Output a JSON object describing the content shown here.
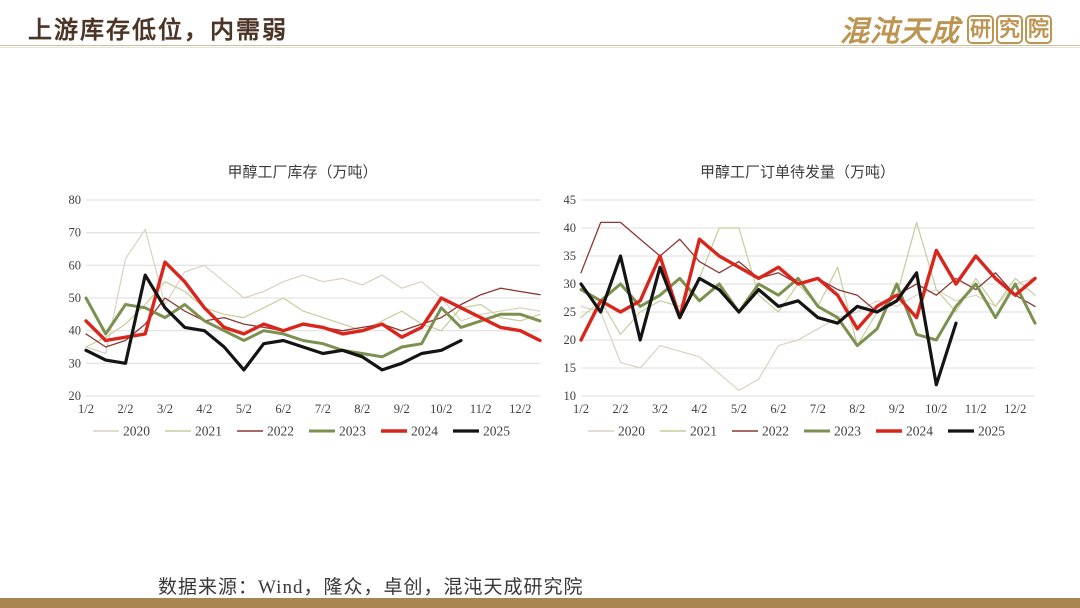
{
  "header": {
    "title": "上游库存低位，内需弱",
    "logo_main": "混沌天成",
    "logo_box_chars": [
      "研",
      "究",
      "院"
    ]
  },
  "footer": {
    "source": "数据来源：Wind，隆众，卓创，混沌天成研究院"
  },
  "colors": {
    "title_text": "#4b3526",
    "logo_gold": "#bc9552",
    "bottom_bar": "#a9854f",
    "grid": "#dcdcdc",
    "axis_text": "#404040"
  },
  "chart_data": [
    {
      "type": "line",
      "title": "甲醇工厂库存（万吨）",
      "ylim": [
        20,
        80
      ],
      "yticks": [
        20,
        30,
        40,
        50,
        60,
        70,
        80
      ],
      "x_tick_labels": [
        "1/2",
        "2/2",
        "3/2",
        "4/2",
        "5/2",
        "6/2",
        "7/2",
        "8/2",
        "9/2",
        "10/2",
        "11/2",
        "12/2"
      ],
      "points_per_month": 2,
      "grid": "horizontal",
      "legend_position": "bottom",
      "series": [
        {
          "name": "2020",
          "color": "#d9d2c1",
          "width": 1.2,
          "values": [
            35,
            33,
            62,
            71,
            48,
            58,
            60,
            55,
            50,
            52,
            55,
            57,
            55,
            56,
            54,
            57,
            53,
            55,
            50,
            43,
            45,
            46,
            47,
            46
          ]
        },
        {
          "name": "2021",
          "color": "#c6cd9b",
          "width": 1.2,
          "values": [
            35,
            38,
            42,
            48,
            55,
            52,
            47,
            45,
            44,
            47,
            50,
            46,
            44,
            42,
            40,
            43,
            46,
            42,
            40,
            47,
            48,
            44,
            43,
            45
          ]
        },
        {
          "name": "2022",
          "color": "#8c3836",
          "width": 1.3,
          "values": [
            39,
            35,
            37,
            42,
            50,
            46,
            43,
            44,
            42,
            41,
            40,
            42,
            41,
            40,
            41,
            42,
            40,
            42,
            44,
            48,
            51,
            53,
            52,
            51
          ]
        },
        {
          "name": "2023",
          "color": "#7c9150",
          "width": 3,
          "values": [
            50,
            39,
            48,
            47,
            44,
            48,
            43,
            40,
            37,
            40,
            39,
            37,
            36,
            34,
            33,
            32,
            35,
            36,
            47,
            41,
            43,
            45,
            45,
            43
          ]
        },
        {
          "name": "2024",
          "color": "#d9261c",
          "width": 3.4,
          "values": [
            43,
            37,
            38,
            39,
            61,
            55,
            47,
            41,
            39,
            42,
            40,
            42,
            41,
            39,
            40,
            42,
            38,
            41,
            50,
            47,
            44,
            41,
            40,
            37
          ]
        },
        {
          "name": "2025",
          "color": "#141414",
          "width": 3.2,
          "values": [
            34,
            31,
            30,
            57,
            47,
            41,
            40,
            35,
            28,
            36,
            37,
            35,
            33,
            34,
            32,
            28,
            30,
            33,
            34,
            37,
            null,
            null,
            null,
            null
          ]
        }
      ]
    },
    {
      "type": "line",
      "title": "甲醇工厂订单待发量（万吨）",
      "ylim": [
        10,
        45
      ],
      "yticks": [
        10,
        15,
        20,
        25,
        30,
        35,
        40,
        45
      ],
      "x_tick_labels": [
        "1/2",
        "2/2",
        "3/2",
        "4/2",
        "5/2",
        "6/2",
        "7/2",
        "8/2",
        "9/2",
        "10/2",
        "11/2",
        "12/2"
      ],
      "points_per_month": 2,
      "grid": "horizontal",
      "legend_position": "bottom",
      "series": [
        {
          "name": "2020",
          "color": "#d9d2c1",
          "width": 1.2,
          "values": [
            26,
            25,
            16,
            15,
            19,
            18,
            17,
            14,
            11,
            13,
            19,
            20,
            22,
            24,
            25,
            27,
            26,
            28,
            29,
            27,
            28,
            26,
            30,
            31
          ]
        },
        {
          "name": "2021",
          "color": "#c6cd9b",
          "width": 1.2,
          "values": [
            24,
            27,
            21,
            25,
            27,
            26,
            31,
            40,
            40,
            28,
            25,
            30,
            26,
            33,
            19,
            25,
            28,
            41,
            29,
            25,
            31,
            26,
            31,
            28
          ]
        },
        {
          "name": "2022",
          "color": "#8c3836",
          "width": 1.3,
          "values": [
            32,
            41,
            41,
            38,
            35,
            38,
            34,
            32,
            34,
            31,
            32,
            30,
            31,
            29,
            28,
            25,
            28,
            30,
            28,
            31,
            29,
            32,
            28,
            26
          ]
        },
        {
          "name": "2023",
          "color": "#7c9150",
          "width": 3,
          "values": [
            29,
            27,
            30,
            26,
            28,
            31,
            27,
            30,
            25,
            30,
            28,
            31,
            26,
            24,
            19,
            22,
            30,
            21,
            20,
            26,
            30,
            24,
            30,
            23
          ]
        },
        {
          "name": "2024",
          "color": "#d9261c",
          "width": 3.4,
          "values": [
            20,
            27,
            25,
            27,
            35,
            24,
            38,
            35,
            33,
            31,
            33,
            30,
            31,
            28,
            22,
            26,
            28,
            24,
            36,
            30,
            35,
            31,
            28,
            31
          ]
        },
        {
          "name": "2025",
          "color": "#141414",
          "width": 3.2,
          "values": [
            30,
            25,
            35,
            20,
            33,
            24,
            31,
            29,
            25,
            29,
            26,
            27,
            24,
            23,
            26,
            25,
            27,
            32,
            12,
            23,
            null,
            null,
            null,
            null
          ]
        }
      ]
    }
  ]
}
